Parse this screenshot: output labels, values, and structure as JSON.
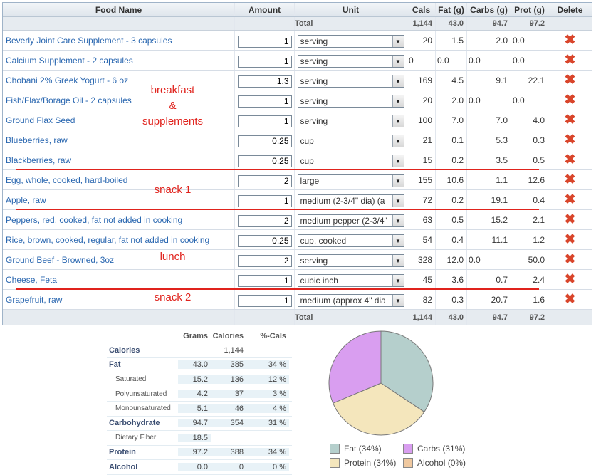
{
  "table": {
    "headers": {
      "name": "Food Name",
      "amount": "Amount",
      "unit": "Unit",
      "cals": "Cals",
      "fat": "Fat (g)",
      "carbs": "Carbs (g)",
      "prot": "Prot (g)",
      "delete": "Delete"
    },
    "total_label": "Total",
    "totals": {
      "cals": "1,144",
      "fat": "43.0",
      "carbs": "94.7",
      "prot": "97.2"
    },
    "rows": [
      {
        "name": "Beverly Joint Care Supplement - 3 capsules",
        "amount": "1",
        "unit": "serving",
        "cals": "20",
        "fat": "1.5",
        "carbs": "2.0",
        "prot": "0.0"
      },
      {
        "name": "Calcium Supplement - 2 capsules",
        "amount": "1",
        "unit": "serving",
        "cals": "0",
        "fat": "0.0",
        "carbs": "0.0",
        "prot": "0.0"
      },
      {
        "name": "Chobani 2% Greek Yogurt - 6 oz",
        "amount": "1.3",
        "unit": "serving",
        "cals": "169",
        "fat": "4.5",
        "carbs": "9.1",
        "prot": "22.1"
      },
      {
        "name": "Fish/Flax/Borage Oil - 2 capsules",
        "amount": "1",
        "unit": "serving",
        "cals": "20",
        "fat": "2.0",
        "carbs": "0.0",
        "prot": "0.0"
      },
      {
        "name": "Ground Flax Seed",
        "amount": "1",
        "unit": "serving",
        "cals": "100",
        "fat": "7.0",
        "carbs": "7.0",
        "prot": "4.0"
      },
      {
        "name": "Blueberries, raw",
        "amount": "0.25",
        "unit": "cup",
        "cals": "21",
        "fat": "0.1",
        "carbs": "5.3",
        "prot": "0.3"
      },
      {
        "name": "Blackberries, raw",
        "amount": "0.25",
        "unit": "cup",
        "cals": "15",
        "fat": "0.2",
        "carbs": "3.5",
        "prot": "0.5"
      },
      {
        "name": "Egg, whole, cooked, hard-boiled",
        "amount": "2",
        "unit": "large",
        "cals": "155",
        "fat": "10.6",
        "carbs": "1.1",
        "prot": "12.6"
      },
      {
        "name": "Apple, raw",
        "amount": "1",
        "unit": "medium (2-3/4\" dia) (a",
        "cals": "72",
        "fat": "0.2",
        "carbs": "19.1",
        "prot": "0.4"
      },
      {
        "name": "Peppers, red, cooked, fat not added in cooking",
        "amount": "2",
        "unit": "medium pepper (2-3/4\"",
        "cals": "63",
        "fat": "0.5",
        "carbs": "15.2",
        "prot": "2.1"
      },
      {
        "name": "Rice, brown, cooked, regular, fat not added in cooking",
        "amount": "0.25",
        "unit": "cup, cooked",
        "cals": "54",
        "fat": "0.4",
        "carbs": "11.1",
        "prot": "1.2"
      },
      {
        "name": "Ground Beef - Browned, 3oz",
        "amount": "2",
        "unit": "serving",
        "cals": "328",
        "fat": "12.0",
        "carbs": "0.0",
        "prot": "50.0"
      },
      {
        "name": "Cheese, Feta",
        "amount": "1",
        "unit": "cubic inch",
        "cals": "45",
        "fat": "3.6",
        "carbs": "0.7",
        "prot": "2.4"
      },
      {
        "name": "Grapefruit, raw",
        "amount": "1",
        "unit": "medium (approx 4\" dia",
        "cals": "82",
        "fat": "0.3",
        "carbs": "20.7",
        "prot": "1.6"
      }
    ]
  },
  "annotations": {
    "breakfast": "breakfast\n&\nsupplements",
    "snack1": "snack 1",
    "lunch": "lunch",
    "snack2": "snack 2"
  },
  "nutrition": {
    "headers": {
      "grams": "Grams",
      "calories": "Calories",
      "pct": "%-Cals"
    },
    "rows": [
      {
        "label": "Calories",
        "grams": "",
        "calories": "1,144",
        "pct": "",
        "kind": "major"
      },
      {
        "label": "Fat",
        "grams": "43.0",
        "calories": "385",
        "pct": "34 %",
        "kind": "major"
      },
      {
        "label": "Saturated",
        "grams": "15.2",
        "calories": "136",
        "pct": "12 %",
        "kind": "sub"
      },
      {
        "label": "Polyunsaturated",
        "grams": "4.2",
        "calories": "37",
        "pct": "3 %",
        "kind": "sub"
      },
      {
        "label": "Monounsaturated",
        "grams": "5.1",
        "calories": "46",
        "pct": "4 %",
        "kind": "sub"
      },
      {
        "label": "Carbohydrate",
        "grams": "94.7",
        "calories": "354",
        "pct": "31 %",
        "kind": "major"
      },
      {
        "label": "Dietary Fiber",
        "grams": "18.5",
        "calories": "",
        "pct": "",
        "kind": "sub"
      },
      {
        "label": "Protein",
        "grams": "97.2",
        "calories": "388",
        "pct": "34 %",
        "kind": "major"
      },
      {
        "label": "Alcohol",
        "grams": "0.0",
        "calories": "0",
        "pct": "0 %",
        "kind": "major"
      }
    ]
  },
  "chart_data": {
    "type": "pie",
    "categories": [
      "Fat",
      "Carbs",
      "Protein",
      "Alcohol"
    ],
    "values": [
      34,
      31,
      34,
      0
    ],
    "colors": [
      "#b5cfcc",
      "#d99ef0",
      "#f4e6bc",
      "#f0c9a0"
    ],
    "legend": [
      {
        "label": "Fat (34%)",
        "color": "#b5cfcc"
      },
      {
        "label": "Carbs (31%)",
        "color": "#d99ef0"
      },
      {
        "label": "Protein (34%)",
        "color": "#f4e6bc"
      },
      {
        "label": "Alcohol (0%)",
        "color": "#f0c9a0"
      }
    ],
    "legend_position": "bottom"
  }
}
